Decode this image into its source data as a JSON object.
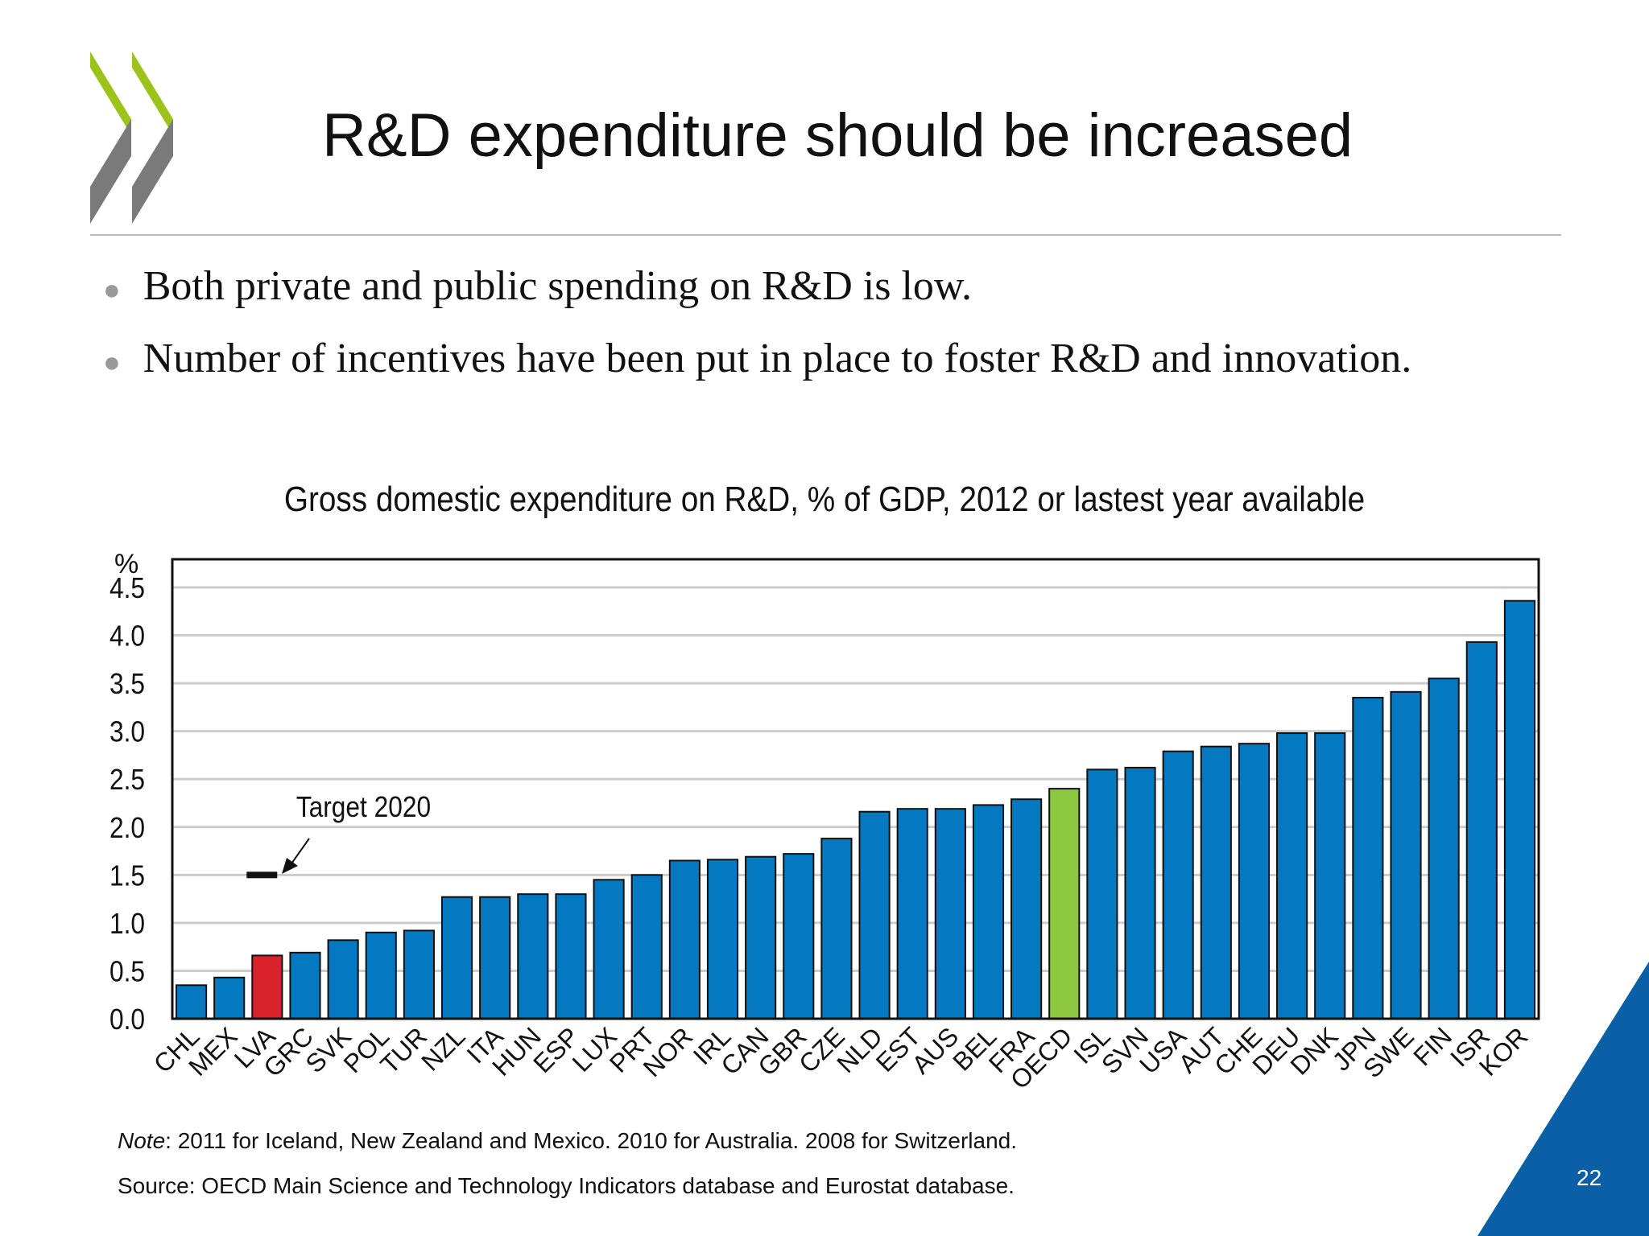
{
  "slide": {
    "title": "R&D expenditure should be increased",
    "bullets": [
      "Both private and public spending on R&D is low.",
      "Number of incentives have been put in place to foster R&D and innovation."
    ],
    "note_label": "Note",
    "note_text": ": 2011 for Iceland, New Zealand and Mexico. 2010 for Australia. 2008 for Switzerland.",
    "source": "Source: OECD Main Science and Technology Indicators database and Eurostat database.",
    "page_number": "22"
  },
  "colors": {
    "bar": "#0479c1",
    "highlight_lva": "#d9222a",
    "highlight_oecd": "#8dc63f",
    "logo_green": "#9bc31c",
    "logo_gray": "#7a7a7a",
    "corner": "#0b5fa5"
  },
  "chart_data": {
    "type": "bar",
    "title": "Gross domestic expenditure on R&D, % of GDP, 2012 or lastest year available",
    "ylabel": "%",
    "ylim": [
      0,
      4.5
    ],
    "yticks": [
      "0.0",
      "0.5",
      "1.0",
      "1.5",
      "2.0",
      "2.5",
      "3.0",
      "3.5",
      "4.0",
      "4.5"
    ],
    "grid": true,
    "categories": [
      "CHL",
      "MEX",
      "LVA",
      "GRC",
      "SVK",
      "POL",
      "TUR",
      "NZL",
      "ITA",
      "HUN",
      "ESP",
      "LUX",
      "PRT",
      "NOR",
      "IRL",
      "CAN",
      "GBR",
      "CZE",
      "NLD",
      "EST",
      "AUS",
      "BEL",
      "FRA",
      "OECD",
      "ISL",
      "SVN",
      "USA",
      "AUT",
      "CHE",
      "DEU",
      "DNK",
      "JPN",
      "SWE",
      "FIN",
      "ISR",
      "KOR"
    ],
    "values": [
      0.35,
      0.43,
      0.66,
      0.69,
      0.82,
      0.9,
      0.92,
      1.27,
      1.27,
      1.3,
      1.3,
      1.45,
      1.5,
      1.65,
      1.66,
      1.69,
      1.72,
      1.88,
      2.16,
      2.19,
      2.19,
      2.23,
      2.29,
      2.4,
      2.6,
      2.62,
      2.79,
      2.84,
      2.87,
      2.98,
      2.98,
      3.35,
      3.41,
      3.55,
      3.93,
      4.36
    ],
    "annotation": {
      "text": "Target 2020",
      "category": "LVA",
      "value": 1.5
    }
  }
}
